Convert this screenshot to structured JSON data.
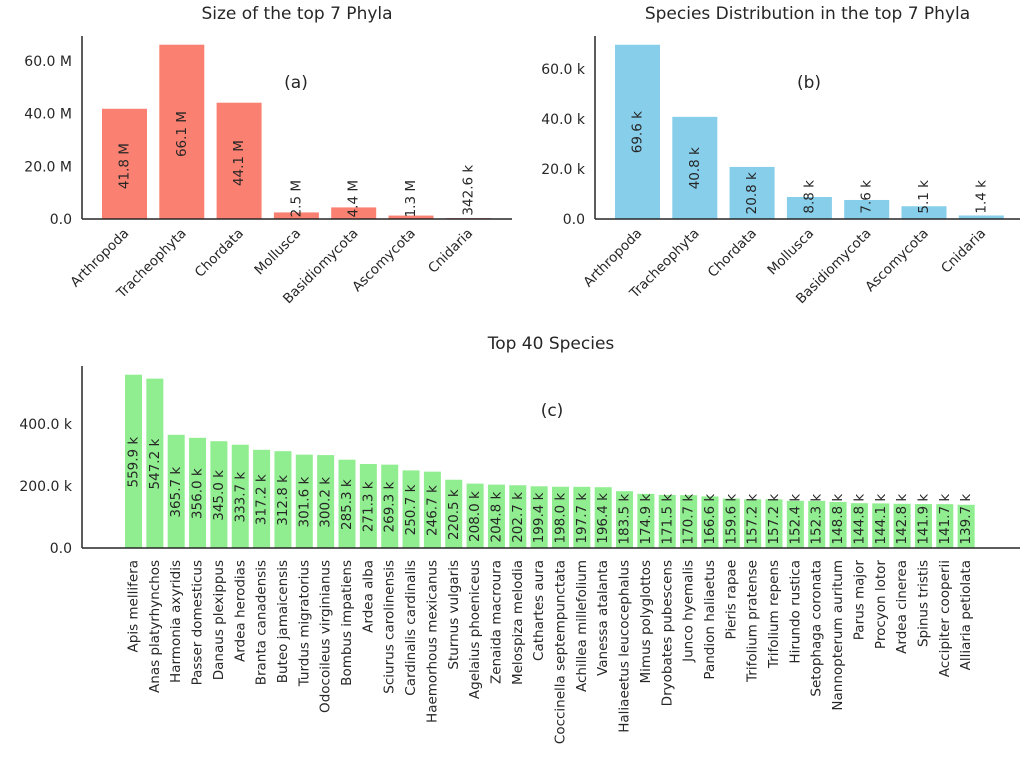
{
  "chart_data": [
    {
      "type": "bar",
      "title": "Size of the top 7 Phyla",
      "panel_label": "(a)",
      "color": "#fa8072",
      "categories": [
        "Arthropoda",
        "Tracheophyta",
        "Chordata",
        "Mollusca",
        "Basidiomycota",
        "Ascomycota",
        "Cnidaria"
      ],
      "values": [
        41800000,
        66100000,
        44100000,
        2500000,
        4400000,
        1300000,
        342600
      ],
      "value_labels": [
        "41.8 M",
        "66.1 M",
        "44.1 M",
        "2.5 M",
        "4.4 M",
        "1.3 M",
        "342.6 k"
      ],
      "yticks": [
        0,
        20000000,
        40000000,
        60000000
      ],
      "ytick_labels": [
        "0.0",
        "20.0 M",
        "40.0 M",
        "60.0 M"
      ],
      "ylim": [
        0,
        69400000
      ]
    },
    {
      "type": "bar",
      "title": "Species Distribution in the top 7 Phyla",
      "panel_label": "(b)",
      "color": "#87ceeb",
      "categories": [
        "Arthropoda",
        "Tracheophyta",
        "Chordata",
        "Mollusca",
        "Basidiomycota",
        "Ascomycota",
        "Cnidaria"
      ],
      "values": [
        69600,
        40800,
        20800,
        8800,
        7600,
        5100,
        1400
      ],
      "value_labels": [
        "69.6 k",
        "40.8 k",
        "20.8 k",
        "8.8 k",
        "7.6 k",
        "5.1 k",
        "1.4 k"
      ],
      "yticks": [
        0,
        20000,
        40000,
        60000
      ],
      "ytick_labels": [
        "0.0",
        "20.0 k",
        "40.0 k",
        "60.0 k"
      ],
      "ylim": [
        0,
        73100
      ]
    },
    {
      "type": "bar",
      "title": "Top 40 Species",
      "panel_label": "(c)",
      "color": "#90ee90",
      "categories": [
        "Apis mellifera",
        "Anas platyrhynchos",
        "Harmonia axyridis",
        "Passer domesticus",
        "Danaus plexippus",
        "Ardea herodias",
        "Branta canadensis",
        "Buteo jamaicensis",
        "Turdus migratorius",
        "Odocoileus virginianus",
        "Bombus impatiens",
        "Ardea alba",
        "Sciurus carolinensis",
        "Cardinalis cardinalis",
        "Haemorhous mexicanus",
        "Sturnus vulgaris",
        "Agelaius phoeniceus",
        "Zenaida macroura",
        "Melospiza melodia",
        "Cathartes aura",
        "Coccinella septempunctata",
        "Achillea millefolium",
        "Vanessa atalanta",
        "Haliaeetus leucocephalus",
        "Mimus polyglottos",
        "Dryobates pubescens",
        "Junco hyemalis",
        "Pandion haliaetus",
        "Pieris rapae",
        "Trifolium pratense",
        "Trifolium repens",
        "Hirundo rustica",
        "Setophaga coronata",
        "Nannopterum auritum",
        "Parus major",
        "Procyon lotor",
        "Ardea cinerea",
        "Spinus tristis",
        "Accipiter cooperii",
        "Alliaria petiolata"
      ],
      "values": [
        559900,
        547200,
        365700,
        356000,
        345000,
        333700,
        317200,
        312800,
        301600,
        300200,
        285300,
        271300,
        269300,
        250700,
        246700,
        220500,
        208000,
        204800,
        202700,
        199400,
        198000,
        197700,
        196400,
        183500,
        174900,
        171500,
        170700,
        166600,
        159600,
        157200,
        157200,
        152400,
        152300,
        148800,
        144800,
        144100,
        142800,
        141900,
        141700,
        139700
      ],
      "value_labels": [
        "559.9 k",
        "547.2 k",
        "365.7 k",
        "356.0 k",
        "345.0 k",
        "333.7 k",
        "317.2 k",
        "312.8 k",
        "301.6 k",
        "300.2 k",
        "285.3 k",
        "271.3 k",
        "269.3 k",
        "250.7 k",
        "246.7 k",
        "220.5 k",
        "208.0 k",
        "204.8 k",
        "202.7 k",
        "199.4 k",
        "198.0 k",
        "197.7 k",
        "196.4 k",
        "183.5 k",
        "174.9 k",
        "171.5 k",
        "170.7 k",
        "166.6 k",
        "159.6 k",
        "157.2 k",
        "157.2 k",
        "152.4 k",
        "152.3 k",
        "148.8 k",
        "144.8 k",
        "144.1 k",
        "142.8 k",
        "141.9 k",
        "141.7 k",
        "139.7 k"
      ],
      "yticks": [
        0,
        200000,
        400000
      ],
      "ytick_labels": [
        "0.0",
        "200.0 k",
        "400.0 k"
      ],
      "ylim": [
        0,
        588000
      ]
    }
  ]
}
